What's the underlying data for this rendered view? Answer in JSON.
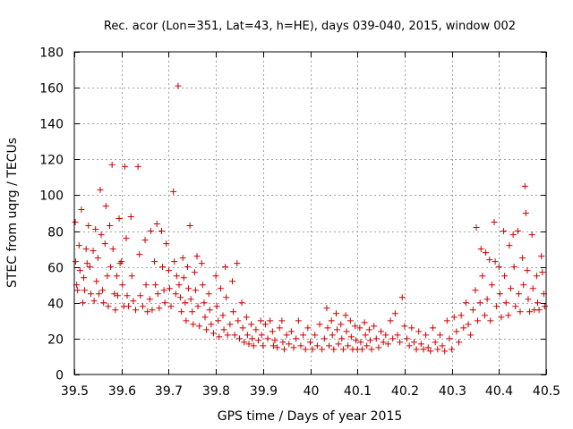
{
  "chart_data": {
    "type": "scatter",
    "title": "Rec. acor (Lon=351, Lat=43, h=HE), days 039-040, 2015, window 002",
    "xlabel": "GPS time / Days of year 2015",
    "ylabel": "STEC from uqrg / TECUs",
    "xlim": [
      39.5,
      40.5
    ],
    "ylim": [
      0,
      180
    ],
    "xticks": [
      39.5,
      39.6,
      39.7,
      39.8,
      39.9,
      40,
      40.1,
      40.2,
      40.3,
      40.4,
      40.5
    ],
    "xtick_labels": [
      "39.5",
      "39.6",
      "39.7",
      "39.8",
      "39.9",
      "40",
      "40.1",
      "40.2",
      "40.3",
      "40.4",
      "40.5"
    ],
    "yticks": [
      0,
      20,
      40,
      60,
      80,
      100,
      120,
      140,
      160,
      180
    ],
    "ytick_labels": [
      "0",
      "20",
      "40",
      "60",
      "80",
      "100",
      "120",
      "140",
      "160",
      "180"
    ],
    "grid": true,
    "marker": "+",
    "color": "#cc0000",
    "series": [
      {
        "name": "STEC",
        "points": [
          [
            39.502,
            85
          ],
          [
            39.503,
            63
          ],
          [
            39.505,
            50
          ],
          [
            39.507,
            47
          ],
          [
            39.51,
            72
          ],
          [
            39.512,
            58
          ],
          [
            39.515,
            92
          ],
          [
            39.518,
            40
          ],
          [
            39.52,
            54
          ],
          [
            39.522,
            47
          ],
          [
            39.525,
            70
          ],
          [
            39.527,
            62
          ],
          [
            39.53,
            83
          ],
          [
            39.533,
            60
          ],
          [
            39.535,
            45
          ],
          [
            39.54,
            69
          ],
          [
            39.542,
            41
          ],
          [
            39.545,
            81
          ],
          [
            39.547,
            52
          ],
          [
            39.55,
            65
          ],
          [
            39.552,
            45
          ],
          [
            39.555,
            103
          ],
          [
            39.557,
            78
          ],
          [
            39.56,
            47
          ],
          [
            39.562,
            40
          ],
          [
            39.565,
            73
          ],
          [
            39.567,
            94
          ],
          [
            39.57,
            55
          ],
          [
            39.572,
            38
          ],
          [
            39.575,
            83
          ],
          [
            39.577,
            60
          ],
          [
            39.58,
            117
          ],
          [
            39.582,
            70
          ],
          [
            39.585,
            45
          ],
          [
            39.587,
            36
          ],
          [
            39.59,
            55
          ],
          [
            39.592,
            44
          ],
          [
            39.595,
            87
          ],
          [
            39.597,
            62
          ],
          [
            39.6,
            63
          ],
          [
            39.602,
            50
          ],
          [
            39.605,
            38
          ],
          [
            39.607,
            116
          ],
          [
            39.61,
            76
          ],
          [
            39.612,
            44
          ],
          [
            39.615,
            38
          ],
          [
            39.62,
            88
          ],
          [
            39.622,
            55
          ],
          [
            39.625,
            41
          ],
          [
            39.63,
            36
          ],
          [
            39.635,
            116
          ],
          [
            39.638,
            67
          ],
          [
            39.64,
            44
          ],
          [
            39.645,
            38
          ],
          [
            39.65,
            75
          ],
          [
            39.652,
            50
          ],
          [
            39.655,
            35
          ],
          [
            39.66,
            42
          ],
          [
            39.662,
            80
          ],
          [
            39.665,
            36
          ],
          [
            39.67,
            63
          ],
          [
            39.672,
            50
          ],
          [
            39.675,
            84
          ],
          [
            39.677,
            45
          ],
          [
            39.68,
            37
          ],
          [
            39.685,
            80
          ],
          [
            39.687,
            60
          ],
          [
            39.69,
            47
          ],
          [
            39.692,
            40
          ],
          [
            39.695,
            73
          ],
          [
            39.7,
            58
          ],
          [
            39.702,
            48
          ],
          [
            39.705,
            38
          ],
          [
            39.71,
            102
          ],
          [
            39.712,
            63
          ],
          [
            39.715,
            45
          ],
          [
            39.717,
            55
          ],
          [
            39.72,
            161
          ],
          [
            39.722,
            50
          ],
          [
            39.725,
            43
          ],
          [
            39.727,
            35
          ],
          [
            39.73,
            65
          ],
          [
            39.732,
            54
          ],
          [
            39.735,
            40
          ],
          [
            39.737,
            30
          ],
          [
            39.74,
            60
          ],
          [
            39.742,
            48
          ],
          [
            39.745,
            83
          ],
          [
            39.747,
            42
          ],
          [
            39.75,
            35
          ],
          [
            39.752,
            28
          ],
          [
            39.755,
            57
          ],
          [
            39.757,
            47
          ],
          [
            39.76,
            66
          ],
          [
            39.762,
            38
          ],
          [
            39.765,
            27
          ],
          [
            39.77,
            62
          ],
          [
            39.772,
            50
          ],
          [
            39.775,
            40
          ],
          [
            39.777,
            32
          ],
          [
            39.78,
            25
          ],
          [
            39.785,
            45
          ],
          [
            39.787,
            36
          ],
          [
            39.79,
            28
          ],
          [
            39.795,
            23
          ],
          [
            39.8,
            55
          ],
          [
            39.802,
            38
          ],
          [
            39.805,
            30
          ],
          [
            39.807,
            21
          ],
          [
            39.81,
            48
          ],
          [
            39.815,
            33
          ],
          [
            39.817,
            25
          ],
          [
            39.82,
            60
          ],
          [
            39.822,
            43
          ],
          [
            39.825,
            22
          ],
          [
            39.83,
            28
          ],
          [
            39.835,
            52
          ],
          [
            39.837,
            35
          ],
          [
            39.84,
            22
          ],
          [
            39.845,
            62
          ],
          [
            39.847,
            30
          ],
          [
            39.85,
            20
          ],
          [
            39.855,
            40
          ],
          [
            39.857,
            26
          ],
          [
            39.86,
            18
          ],
          [
            39.865,
            32
          ],
          [
            39.867,
            22
          ],
          [
            39.87,
            17
          ],
          [
            39.875,
            28
          ],
          [
            39.877,
            20
          ],
          [
            39.88,
            16
          ],
          [
            39.885,
            25
          ],
          [
            39.89,
            19
          ],
          [
            39.895,
            30
          ],
          [
            39.897,
            22
          ],
          [
            39.9,
            16
          ],
          [
            39.905,
            28
          ],
          [
            39.91,
            20
          ],
          [
            39.915,
            30
          ],
          [
            39.92,
            24
          ],
          [
            39.922,
            16
          ],
          [
            39.925,
            19
          ],
          [
            39.93,
            15
          ],
          [
            39.935,
            26
          ],
          [
            39.94,
            30
          ],
          [
            39.942,
            18
          ],
          [
            39.945,
            14
          ],
          [
            39.95,
            22
          ],
          [
            39.955,
            17
          ],
          [
            39.96,
            24
          ],
          [
            39.965,
            15
          ],
          [
            39.97,
            20
          ],
          [
            39.975,
            30
          ],
          [
            39.98,
            16
          ],
          [
            39.985,
            22
          ],
          [
            39.99,
            14
          ],
          [
            39.995,
            26
          ],
          [
            40.0,
            18
          ],
          [
            40.005,
            14
          ],
          [
            40.01,
            22
          ],
          [
            40.015,
            16
          ],
          [
            40.02,
            28
          ],
          [
            40.025,
            14
          ],
          [
            40.03,
            20
          ],
          [
            40.035,
            37
          ],
          [
            40.037,
            26
          ],
          [
            40.04,
            16
          ],
          [
            40.045,
            30
          ],
          [
            40.047,
            22
          ],
          [
            40.05,
            14
          ],
          [
            40.055,
            34
          ],
          [
            40.057,
            25
          ],
          [
            40.06,
            17
          ],
          [
            40.065,
            28
          ],
          [
            40.067,
            20
          ],
          [
            40.07,
            14
          ],
          [
            40.075,
            33
          ],
          [
            40.077,
            24
          ],
          [
            40.08,
            16
          ],
          [
            40.085,
            30
          ],
          [
            40.087,
            21
          ],
          [
            40.09,
            14
          ],
          [
            40.095,
            27
          ],
          [
            40.097,
            19
          ],
          [
            40.1,
            14
          ],
          [
            40.105,
            26
          ],
          [
            40.107,
            18
          ],
          [
            40.11,
            14
          ],
          [
            40.115,
            29
          ],
          [
            40.117,
            22
          ],
          [
            40.12,
            16
          ],
          [
            40.125,
            25
          ],
          [
            40.127,
            19
          ],
          [
            40.13,
            14
          ],
          [
            40.135,
            27
          ],
          [
            40.14,
            20
          ],
          [
            40.145,
            15
          ],
          [
            40.15,
            24
          ],
          [
            40.155,
            18
          ],
          [
            40.16,
            22
          ],
          [
            40.165,
            17
          ],
          [
            40.17,
            30
          ],
          [
            40.175,
            20
          ],
          [
            40.18,
            34
          ],
          [
            40.185,
            22
          ],
          [
            40.19,
            18
          ],
          [
            40.195,
            43
          ],
          [
            40.2,
            27
          ],
          [
            40.205,
            20
          ],
          [
            40.21,
            16
          ],
          [
            40.215,
            26
          ],
          [
            40.22,
            18
          ],
          [
            40.225,
            14
          ],
          [
            40.23,
            24
          ],
          [
            40.235,
            17
          ],
          [
            40.24,
            14
          ],
          [
            40.245,
            22
          ],
          [
            40.25,
            15
          ],
          [
            40.255,
            13
          ],
          [
            40.26,
            26
          ],
          [
            40.265,
            18
          ],
          [
            40.27,
            14
          ],
          [
            40.275,
            22
          ],
          [
            40.28,
            16
          ],
          [
            40.285,
            13
          ],
          [
            40.29,
            30
          ],
          [
            40.295,
            20
          ],
          [
            40.3,
            14
          ],
          [
            40.305,
            32
          ],
          [
            40.31,
            24
          ],
          [
            40.315,
            18
          ],
          [
            40.32,
            33
          ],
          [
            40.325,
            26
          ],
          [
            40.33,
            40
          ],
          [
            40.335,
            28
          ],
          [
            40.34,
            22
          ],
          [
            40.345,
            36
          ],
          [
            40.35,
            47
          ],
          [
            40.352,
            82
          ],
          [
            40.355,
            30
          ],
          [
            40.36,
            40
          ],
          [
            40.362,
            70
          ],
          [
            40.365,
            55
          ],
          [
            40.37,
            33
          ],
          [
            40.372,
            68
          ],
          [
            40.375,
            42
          ],
          [
            40.38,
            64
          ],
          [
            40.382,
            30
          ],
          [
            40.385,
            50
          ],
          [
            40.39,
            85
          ],
          [
            40.392,
            63
          ],
          [
            40.395,
            38
          ],
          [
            40.4,
            60
          ],
          [
            40.402,
            45
          ],
          [
            40.405,
            32
          ],
          [
            40.41,
            80
          ],
          [
            40.412,
            55
          ],
          [
            40.415,
            40
          ],
          [
            40.42,
            33
          ],
          [
            40.422,
            72
          ],
          [
            40.425,
            48
          ],
          [
            40.43,
            78
          ],
          [
            40.432,
            60
          ],
          [
            40.435,
            38
          ],
          [
            40.44,
            80
          ],
          [
            40.442,
            45
          ],
          [
            40.445,
            35
          ],
          [
            40.45,
            65
          ],
          [
            40.452,
            50
          ],
          [
            40.455,
            105
          ],
          [
            40.457,
            90
          ],
          [
            40.46,
            58
          ],
          [
            40.462,
            42
          ],
          [
            40.465,
            35
          ],
          [
            40.47,
            78
          ],
          [
            40.472,
            48
          ],
          [
            40.475,
            36
          ],
          [
            40.48,
            55
          ],
          [
            40.482,
            40
          ],
          [
            40.485,
            36
          ],
          [
            40.49,
            66
          ],
          [
            40.492,
            57
          ],
          [
            40.495,
            45
          ],
          [
            40.497,
            38
          ]
        ]
      }
    ]
  }
}
